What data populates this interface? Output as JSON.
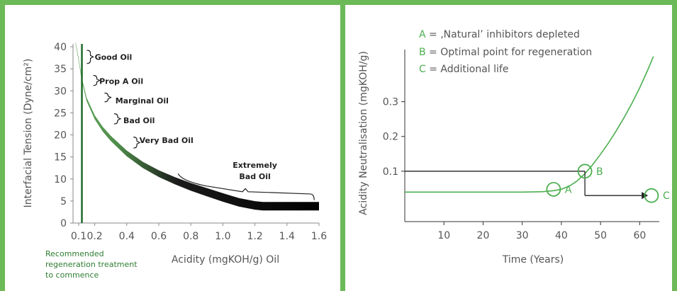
{
  "chart_data": [
    {
      "type": "line",
      "xlabel": "Acidity (mgKOH/g) Oil",
      "ylabel": "Interfacial Tension (Dyne/cm²)",
      "xlim": [
        0.05,
        1.6
      ],
      "ylim": [
        0,
        40
      ],
      "x_ticks": [
        "0.1",
        "0.2",
        "0.4",
        "0.6",
        "0.8",
        "1.0",
        "1.2",
        "1.4",
        "1.6"
      ],
      "x_tick_values": [
        0.1,
        0.2,
        0.4,
        0.6,
        0.8,
        1.0,
        1.2,
        1.4,
        1.6
      ],
      "y_ticks": [
        "0",
        "5",
        "10",
        "15",
        "20",
        "25",
        "30",
        "35",
        "40"
      ],
      "y_tick_values": [
        0,
        5,
        10,
        15,
        20,
        25,
        30,
        35,
        40
      ],
      "grid": false,
      "series": [
        {
          "x": [
            0.08,
            0.1,
            0.12,
            0.15,
            0.2,
            0.25,
            0.3,
            0.4,
            0.5,
            0.6,
            0.7,
            0.8,
            0.9,
            1.0,
            1.1,
            1.2,
            1.25,
            1.3,
            1.4,
            1.5,
            1.6
          ],
          "values": [
            41,
            37,
            32.5,
            28,
            24,
            21.3,
            19.2,
            15.8,
            13.2,
            11.2,
            9.6,
            8.2,
            7,
            5.8,
            4.7,
            4,
            3.8,
            3.8,
            3.8,
            3.8,
            3.8
          ]
        }
      ],
      "vertical_line_x": 0.12,
      "bands": [
        "Good Oil",
        "Prop A Oil",
        "Marginal Oil",
        "Bad Oil",
        "Very Bad Oil",
        "Extremely Bad Oil"
      ],
      "annotation": [
        "Recommended",
        "regeneration treatment",
        "to commence"
      ]
    },
    {
      "type": "line",
      "xlabel": "Time (Years)",
      "ylabel": "Acidity Neutralisation (mgKOH/g)",
      "xlim": [
        0,
        65
      ],
      "ylim": [
        -0.045,
        0.45
      ],
      "x_ticks": [
        "10",
        "20",
        "30",
        "40",
        "50",
        "60"
      ],
      "x_tick_values": [
        10,
        20,
        30,
        40,
        50,
        60
      ],
      "y_ticks": [
        "0.1",
        "0.2",
        "0.3"
      ],
      "y_tick_values": [
        0.1,
        0.2,
        0.3
      ],
      "grid": false,
      "series": [
        {
          "x": [
            0,
            10,
            20,
            30,
            35,
            38,
            40,
            42,
            44,
            46,
            48,
            50,
            52,
            54,
            56,
            58,
            60,
            62,
            63.5
          ],
          "values": [
            0.04,
            0.04,
            0.04,
            0.04,
            0.041,
            0.044,
            0.048,
            0.057,
            0.072,
            0.093,
            0.119,
            0.149,
            0.181,
            0.216,
            0.254,
            0.295,
            0.34,
            0.39,
            0.43
          ]
        }
      ],
      "legend": [
        {
          "key": "A",
          "text": " = ‚Natural’ inhibitors depleted"
        },
        {
          "key": "B",
          "text": " = Optimal point for regeneration"
        },
        {
          "key": "C",
          "text": " = Additional life"
        }
      ],
      "points": [
        {
          "label": "A",
          "x": 38,
          "y": 0.048
        },
        {
          "label": "B",
          "x": 46,
          "y": 0.1
        },
        {
          "label": "C",
          "x": 63,
          "y": 0.03
        }
      ]
    }
  ]
}
